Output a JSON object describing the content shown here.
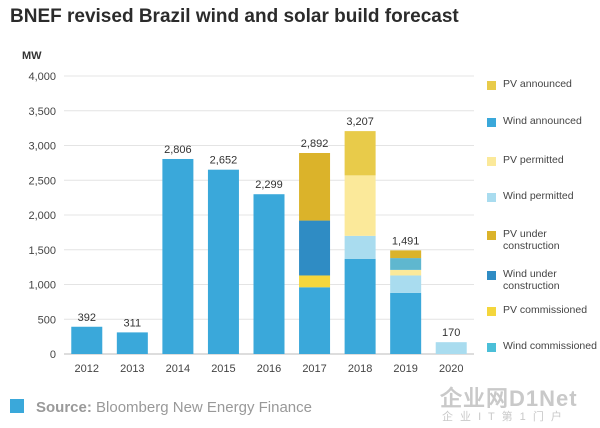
{
  "title": "BNEF revised Brazil wind and solar build forecast",
  "unit_label": "MW",
  "source": {
    "prefix": "Source:",
    "text": "Bloomberg New Energy Finance",
    "swatch_color": "#3aa8da"
  },
  "watermark": {
    "main": "企业网D1Net",
    "sub": "企 业 I T 第 1 门 户"
  },
  "legend": [
    {
      "label": "PV announced",
      "color": "#e8cb4a"
    },
    {
      "label": "Wind announced",
      "color": "#3aa8da"
    },
    {
      "label": "PV permitted",
      "color": "#fbe99a"
    },
    {
      "label": "Wind permitted",
      "color": "#a9dcef"
    },
    {
      "label": "PV under construction",
      "color": "#dbb32a"
    },
    {
      "label": "Wind under construction",
      "color": "#2f8cc4"
    },
    {
      "label": "PV commissioned",
      "color": "#f4d63c"
    },
    {
      "label": "Wind commissioned",
      "color": "#4bbfd8"
    }
  ],
  "chart_data": {
    "type": "bar",
    "stacked": true,
    "ylabel": "MW",
    "ylim": [
      0,
      4000
    ],
    "yticks": [
      0,
      500,
      1000,
      1500,
      2000,
      2500,
      3000,
      3500,
      4000
    ],
    "ytick_labels": [
      "0",
      "500",
      "1,000",
      "1,500",
      "2,000",
      "2,500",
      "3,000",
      "3,500",
      "4,000"
    ],
    "grid": true,
    "legend_position": "right",
    "categories": [
      "2012",
      "2013",
      "2014",
      "2015",
      "2016",
      "2017",
      "2018",
      "2019",
      "2020"
    ],
    "totals_labels": [
      "392",
      "311",
      "2,806",
      "2,652",
      "2,299",
      "2,892",
      "3,207",
      "1,491",
      "170"
    ],
    "series": [
      {
        "name": "Wind commissioned",
        "color": "#3aa8da",
        "values": [
          392,
          311,
          2806,
          2652,
          2299,
          960,
          0,
          0,
          0
        ]
      },
      {
        "name": "PV commissioned",
        "color": "#f4d63c",
        "values": [
          0,
          0,
          0,
          0,
          0,
          170,
          0,
          0,
          0
        ]
      },
      {
        "name": "Wind under construction",
        "color": "#2f8cc4",
        "values": [
          0,
          0,
          0,
          0,
          0,
          790,
          0,
          0,
          0
        ]
      },
      {
        "name": "PV under construction",
        "color": "#dbb32a",
        "values": [
          0,
          0,
          0,
          0,
          0,
          972,
          0,
          0,
          0
        ]
      },
      {
        "name": "Wind permitted",
        "color": "#a9dcef",
        "values": [
          0,
          0,
          0,
          0,
          0,
          0,
          0,
          0,
          170
        ]
      },
      {
        "name": "Wind announced",
        "color": "#3aa8da",
        "values": [
          0,
          0,
          0,
          0,
          0,
          0,
          1370,
          880,
          0
        ]
      },
      {
        "name": "Wind permitted",
        "color": "#a9dcef",
        "values": [
          0,
          0,
          0,
          0,
          0,
          0,
          330,
          250,
          0
        ]
      },
      {
        "name": "PV permitted",
        "color": "#fbe99a",
        "values": [
          0,
          0,
          0,
          0,
          0,
          0,
          870,
          80,
          0
        ]
      },
      {
        "name": "Wind under construction",
        "color": "#5fb7cf",
        "values": [
          0,
          0,
          0,
          0,
          0,
          0,
          0,
          170,
          0
        ]
      },
      {
        "name": "PV under construction",
        "color": "#dbb32a",
        "values": [
          0,
          0,
          0,
          0,
          0,
          0,
          0,
          111,
          0
        ]
      },
      {
        "name": "PV announced",
        "color": "#e8cb4a",
        "values": [
          0,
          0,
          0,
          0,
          0,
          0,
          637,
          0,
          0
        ]
      }
    ]
  }
}
